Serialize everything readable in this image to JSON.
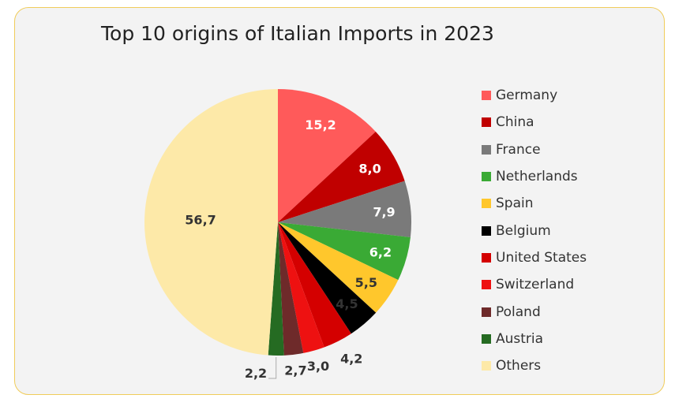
{
  "chart_data": {
    "type": "pie",
    "title": "Top 10 origins of Italian Imports in 2023",
    "start_angle": "12 o'clock",
    "direction": "clockwise",
    "legend_position": "right",
    "slices": [
      {
        "label": "Germany",
        "value": 15.2,
        "display": "15,2",
        "color": "#ff5a5a",
        "label_color": "#ffffff"
      },
      {
        "label": "China",
        "value": 8.0,
        "display": "8,0",
        "color": "#c00000",
        "label_color": "#ffffff"
      },
      {
        "label": "France",
        "value": 7.9,
        "display": "7,9",
        "color": "#7a7a7a",
        "label_color": "#ffffff"
      },
      {
        "label": "Netherlands",
        "value": 6.2,
        "display": "6,2",
        "color": "#3aaa35",
        "label_color": "#ffffff"
      },
      {
        "label": "Spain",
        "value": 5.5,
        "display": "5,5",
        "color": "#ffc72c",
        "label_color": "#333333"
      },
      {
        "label": "Belgium",
        "value": 4.5,
        "display": "4,5",
        "color": "#000000",
        "label_color": "#333333"
      },
      {
        "label": "United States",
        "value": 4.2,
        "display": "4,2",
        "color": "#d40000",
        "label_color": "#333333"
      },
      {
        "label": "Switzerland",
        "value": 3.0,
        "display": "3,0",
        "color": "#ee1111",
        "label_color": "#333333"
      },
      {
        "label": "Poland",
        "value": 2.7,
        "display": "2,7",
        "color": "#6e2a2a",
        "label_color": "#333333"
      },
      {
        "label": "Austria",
        "value": 2.2,
        "display": "2,2",
        "color": "#256b22",
        "label_color": "#333333"
      },
      {
        "label": "Others",
        "value": 56.7,
        "display": "56,7",
        "color": "#fde9a8",
        "label_color": "#333333"
      }
    ]
  }
}
